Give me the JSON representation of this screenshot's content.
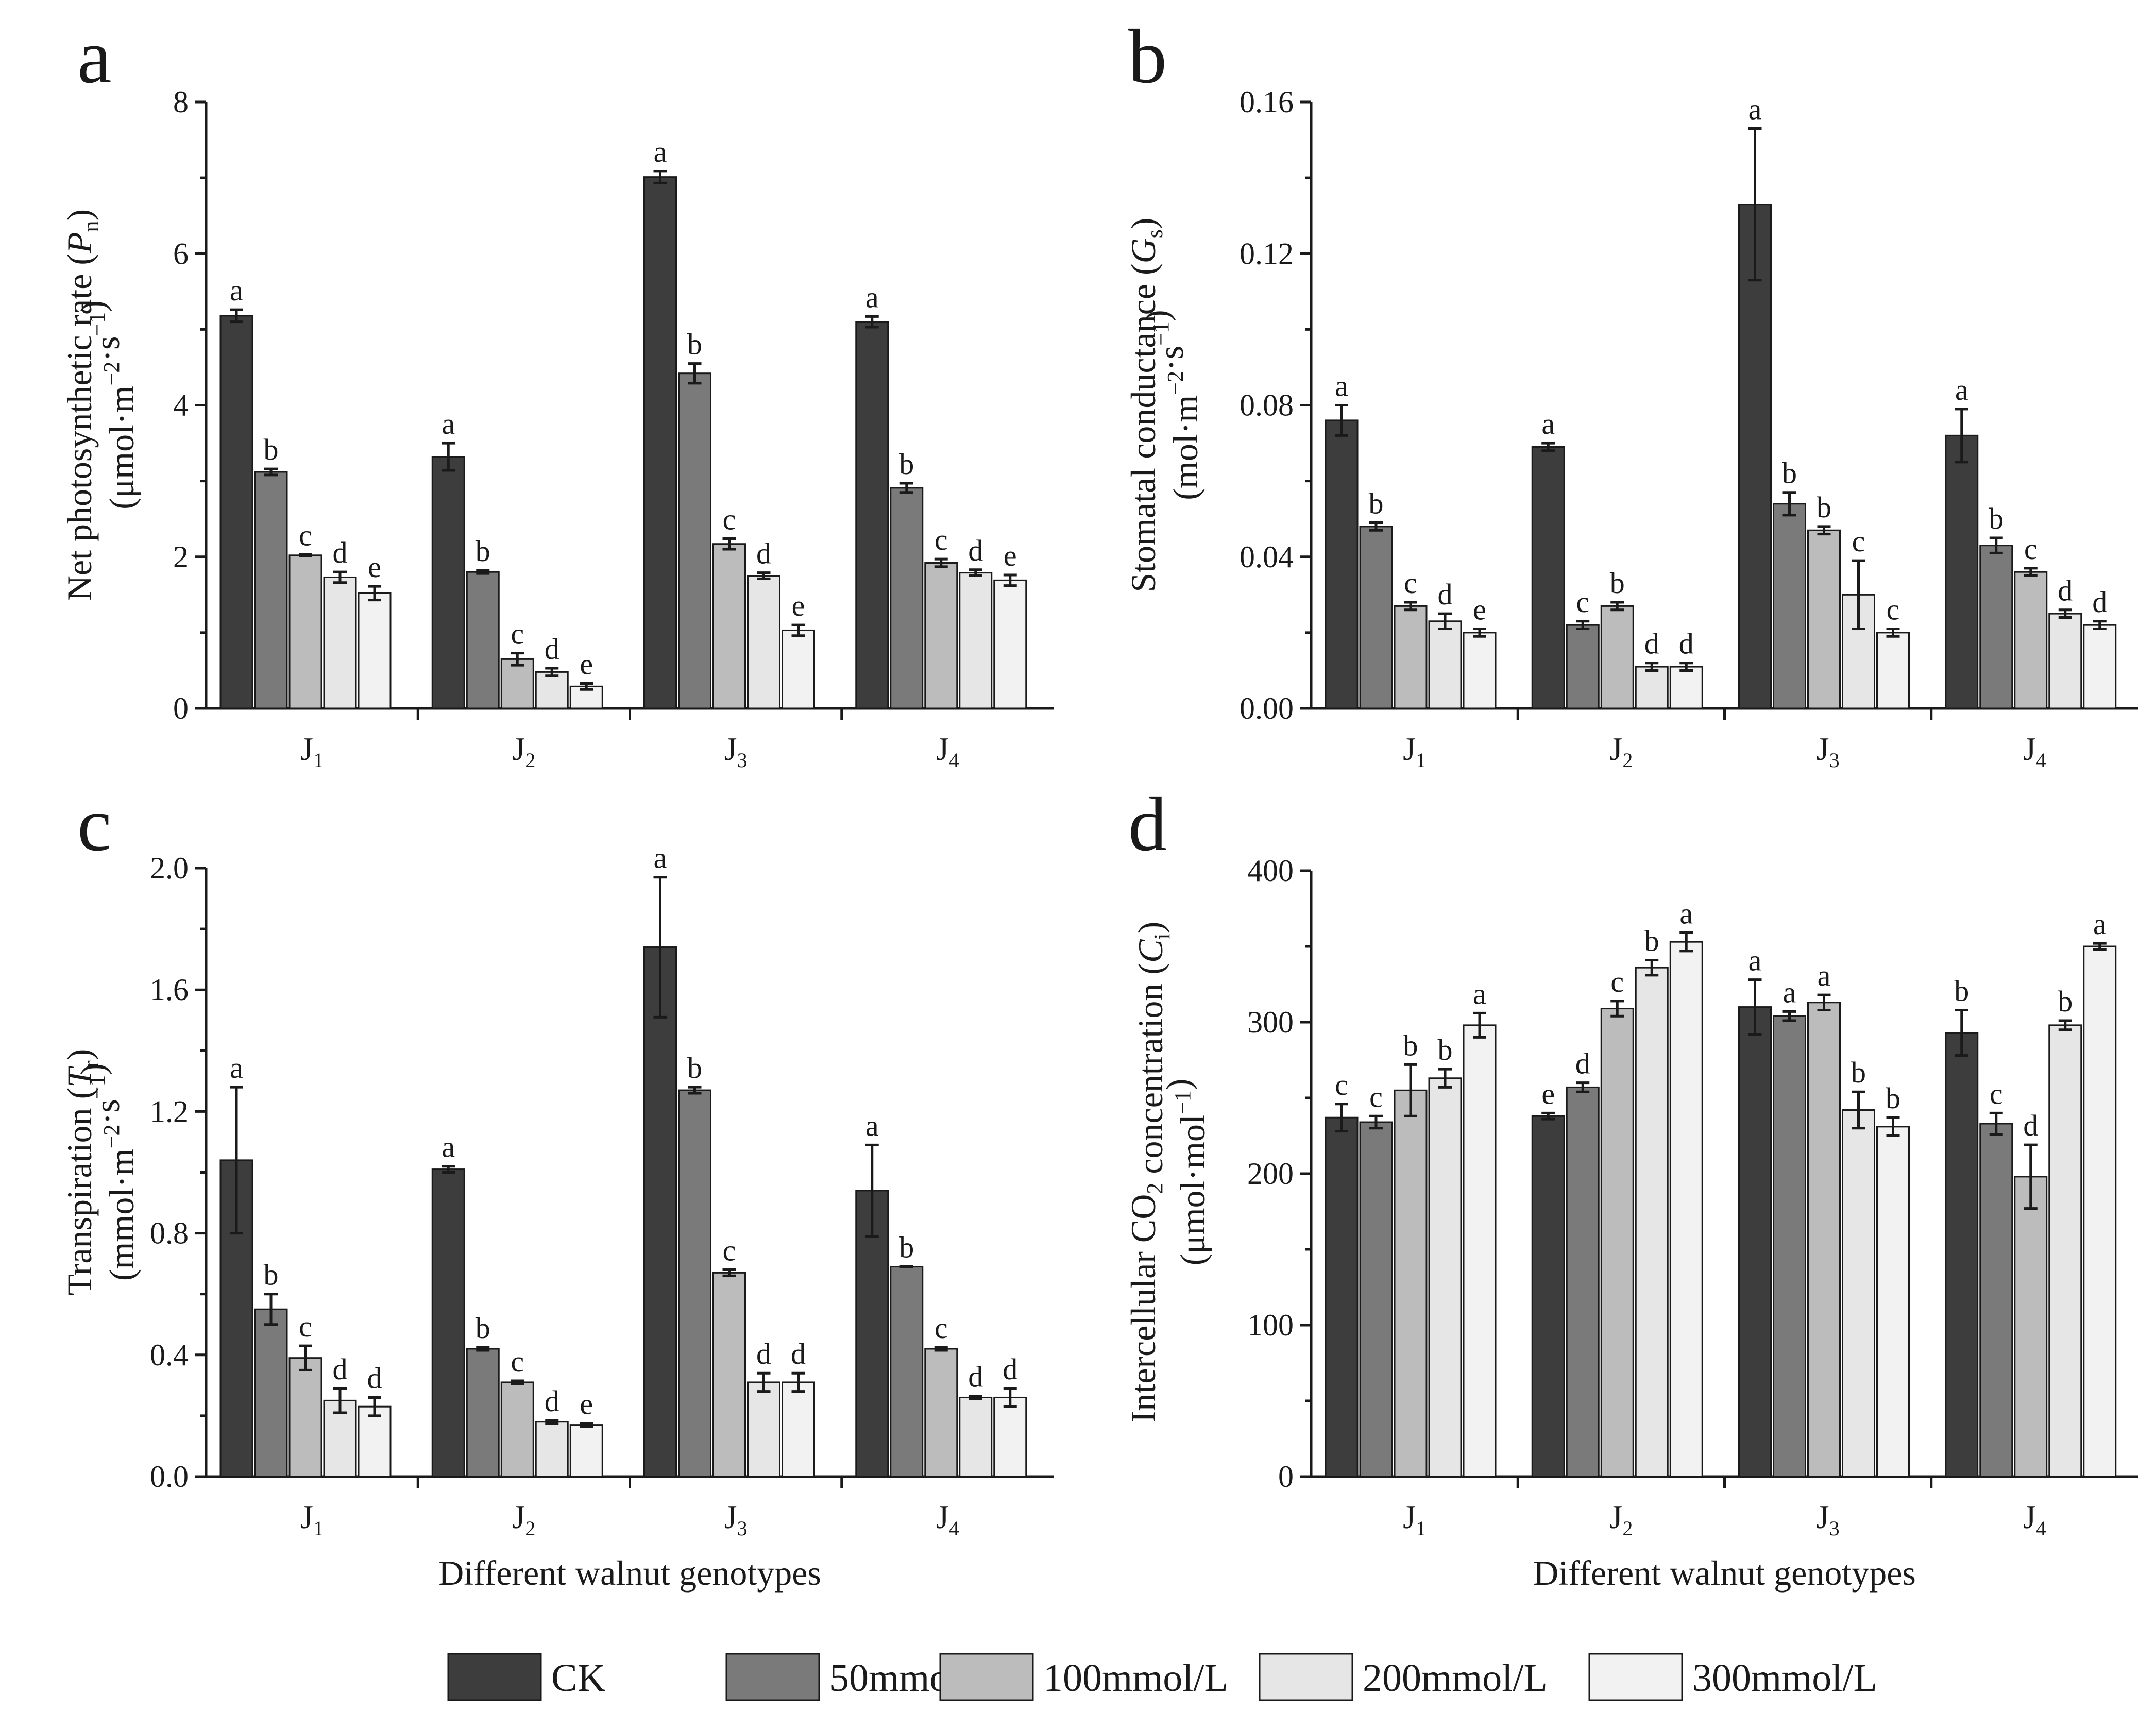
{
  "legend": {
    "items": [
      {
        "label": "CK",
        "color": "#3d3d3d"
      },
      {
        "label": "50mmol/L",
        "color": "#7a7a7a"
      },
      {
        "label": "100mmol/L",
        "color": "#bcbcbc"
      },
      {
        "label": "200mmol/L",
        "color": "#e6e6e6"
      },
      {
        "label": "300mmol/L",
        "color": "#f2f2f2"
      }
    ]
  },
  "shared_xlabel": "Different walnut genotypes",
  "chart_data": [
    {
      "panel": "a",
      "type": "bar",
      "categories": [
        "J1",
        "J2",
        "J3",
        "J4"
      ],
      "ylabel": "Net photosynthetic rate (Pn) (μmol·m−2·s−1)",
      "ylim": [
        0,
        8
      ],
      "yticks": [
        "0",
        "2",
        "4",
        "6",
        "8"
      ],
      "series": [
        {
          "name": "CK",
          "values": [
            5.18,
            3.32,
            7.01,
            5.1
          ],
          "errors": [
            0.08,
            0.18,
            0.08,
            0.07
          ],
          "letters": [
            "a",
            "a",
            "a",
            "a"
          ]
        },
        {
          "name": "50mmol/L",
          "values": [
            3.12,
            1.8,
            4.42,
            2.91
          ],
          "errors": [
            0.04,
            0.02,
            0.13,
            0.06
          ],
          "letters": [
            "b",
            "b",
            "b",
            "b"
          ]
        },
        {
          "name": "100mmol/L",
          "values": [
            2.02,
            0.65,
            2.17,
            1.92
          ],
          "errors": [
            0.01,
            0.08,
            0.07,
            0.05
          ],
          "letters": [
            "c",
            "c",
            "c",
            "c"
          ]
        },
        {
          "name": "200mmol/L",
          "values": [
            1.73,
            0.48,
            1.75,
            1.79
          ],
          "errors": [
            0.07,
            0.05,
            0.04,
            0.04
          ],
          "letters": [
            "d",
            "d",
            "d",
            "d"
          ]
        },
        {
          "name": "300mmol/L",
          "values": [
            1.52,
            0.29,
            1.03,
            1.69
          ],
          "errors": [
            0.09,
            0.04,
            0.07,
            0.07
          ],
          "letters": [
            "e",
            "e",
            "e",
            "e"
          ]
        }
      ]
    },
    {
      "panel": "b",
      "type": "bar",
      "categories": [
        "J1",
        "J2",
        "J3",
        "J4"
      ],
      "ylabel": "Stomatal conductance (Gs) (mol·m−2·s−1)",
      "ylim": [
        0,
        0.16
      ],
      "yticks": [
        "0.00",
        "0.04",
        "0.08",
        "0.12",
        "0.16"
      ],
      "series": [
        {
          "name": "CK",
          "values": [
            0.076,
            0.069,
            0.133,
            0.072
          ],
          "errors": [
            0.004,
            0.001,
            0.02,
            0.007
          ],
          "letters": [
            "a",
            "a",
            "a",
            "a"
          ]
        },
        {
          "name": "50mmol/L",
          "values": [
            0.048,
            0.022,
            0.054,
            0.043
          ],
          "errors": [
            0.001,
            0.001,
            0.003,
            0.002
          ],
          "letters": [
            "b",
            "c",
            "b",
            "b"
          ]
        },
        {
          "name": "100mmol/L",
          "values": [
            0.027,
            0.027,
            0.047,
            0.036
          ],
          "errors": [
            0.001,
            0.001,
            0.001,
            0.001
          ],
          "letters": [
            "c",
            "b",
            "b",
            "c"
          ]
        },
        {
          "name": "200mmol/L",
          "values": [
            0.023,
            0.011,
            0.03,
            0.025
          ],
          "errors": [
            0.002,
            0.001,
            0.009,
            0.001
          ],
          "letters": [
            "d",
            "d",
            "c",
            "d"
          ]
        },
        {
          "name": "300mmol/L",
          "values": [
            0.02,
            0.011,
            0.02,
            0.022
          ],
          "errors": [
            0.001,
            0.001,
            0.001,
            0.001
          ],
          "letters": [
            "e",
            "d",
            "c",
            "d"
          ]
        }
      ]
    },
    {
      "panel": "c",
      "type": "bar",
      "categories": [
        "J1",
        "J2",
        "J3",
        "J4"
      ],
      "ylabel": "Transpiration (Tr) (mmol·m−2·s−1)",
      "ylim": [
        0,
        2.0
      ],
      "yticks": [
        "0.0",
        "0.4",
        "0.8",
        "1.2",
        "1.6",
        "2.0"
      ],
      "series": [
        {
          "name": "CK",
          "values": [
            1.04,
            1.01,
            1.74,
            0.94
          ],
          "errors": [
            0.24,
            0.01,
            0.23,
            0.15
          ],
          "letters": [
            "a",
            "a",
            "a",
            "a"
          ]
        },
        {
          "name": "50mmol/L",
          "values": [
            0.55,
            0.42,
            1.27,
            0.69
          ],
          "errors": [
            0.05,
            0.005,
            0.01,
            0.0
          ],
          "letters": [
            "b",
            "b",
            "b",
            "b"
          ]
        },
        {
          "name": "100mmol/L",
          "values": [
            0.39,
            0.31,
            0.67,
            0.42
          ],
          "errors": [
            0.04,
            0.005,
            0.01,
            0.005
          ],
          "letters": [
            "c",
            "c",
            "c",
            "c"
          ]
        },
        {
          "name": "200mmol/L",
          "values": [
            0.25,
            0.18,
            0.31,
            0.26
          ],
          "errors": [
            0.04,
            0.005,
            0.03,
            0.005
          ],
          "letters": [
            "d",
            "d",
            "d",
            "d"
          ]
        },
        {
          "name": "300mmol/L",
          "values": [
            0.23,
            0.17,
            0.31,
            0.26
          ],
          "errors": [
            0.03,
            0.005,
            0.03,
            0.03
          ],
          "letters": [
            "d",
            "e",
            "d",
            "d"
          ]
        }
      ]
    },
    {
      "panel": "d",
      "type": "bar",
      "categories": [
        "J1",
        "J2",
        "J3",
        "J4"
      ],
      "ylabel": "Intercellular CO2 concentration (Ci) (μmol·mol−1)",
      "ylim": [
        0,
        400
      ],
      "yticks": [
        "0",
        "100",
        "200",
        "300",
        "400"
      ],
      "series": [
        {
          "name": "CK",
          "values": [
            237,
            238,
            310,
            293
          ],
          "errors": [
            9,
            2,
            18,
            15
          ],
          "letters": [
            "c",
            "e",
            "a",
            "b"
          ]
        },
        {
          "name": "50mmol/L",
          "values": [
            234,
            257,
            304,
            233
          ],
          "errors": [
            4,
            3,
            3,
            7
          ],
          "letters": [
            "c",
            "d",
            "a",
            "c"
          ]
        },
        {
          "name": "100mmol/L",
          "values": [
            255,
            309,
            313,
            198
          ],
          "errors": [
            17,
            5,
            5,
            21
          ],
          "letters": [
            "b",
            "c",
            "a",
            "d"
          ]
        },
        {
          "name": "200mmol/L",
          "values": [
            263,
            336,
            242,
            298
          ],
          "errors": [
            6,
            5,
            12,
            3
          ],
          "letters": [
            "b",
            "b",
            "b",
            "b"
          ]
        },
        {
          "name": "300mmol/L",
          "values": [
            298,
            353,
            231,
            350
          ],
          "errors": [
            8,
            6,
            6,
            2
          ],
          "letters": [
            "a",
            "a",
            "b",
            "a"
          ]
        }
      ]
    }
  ]
}
